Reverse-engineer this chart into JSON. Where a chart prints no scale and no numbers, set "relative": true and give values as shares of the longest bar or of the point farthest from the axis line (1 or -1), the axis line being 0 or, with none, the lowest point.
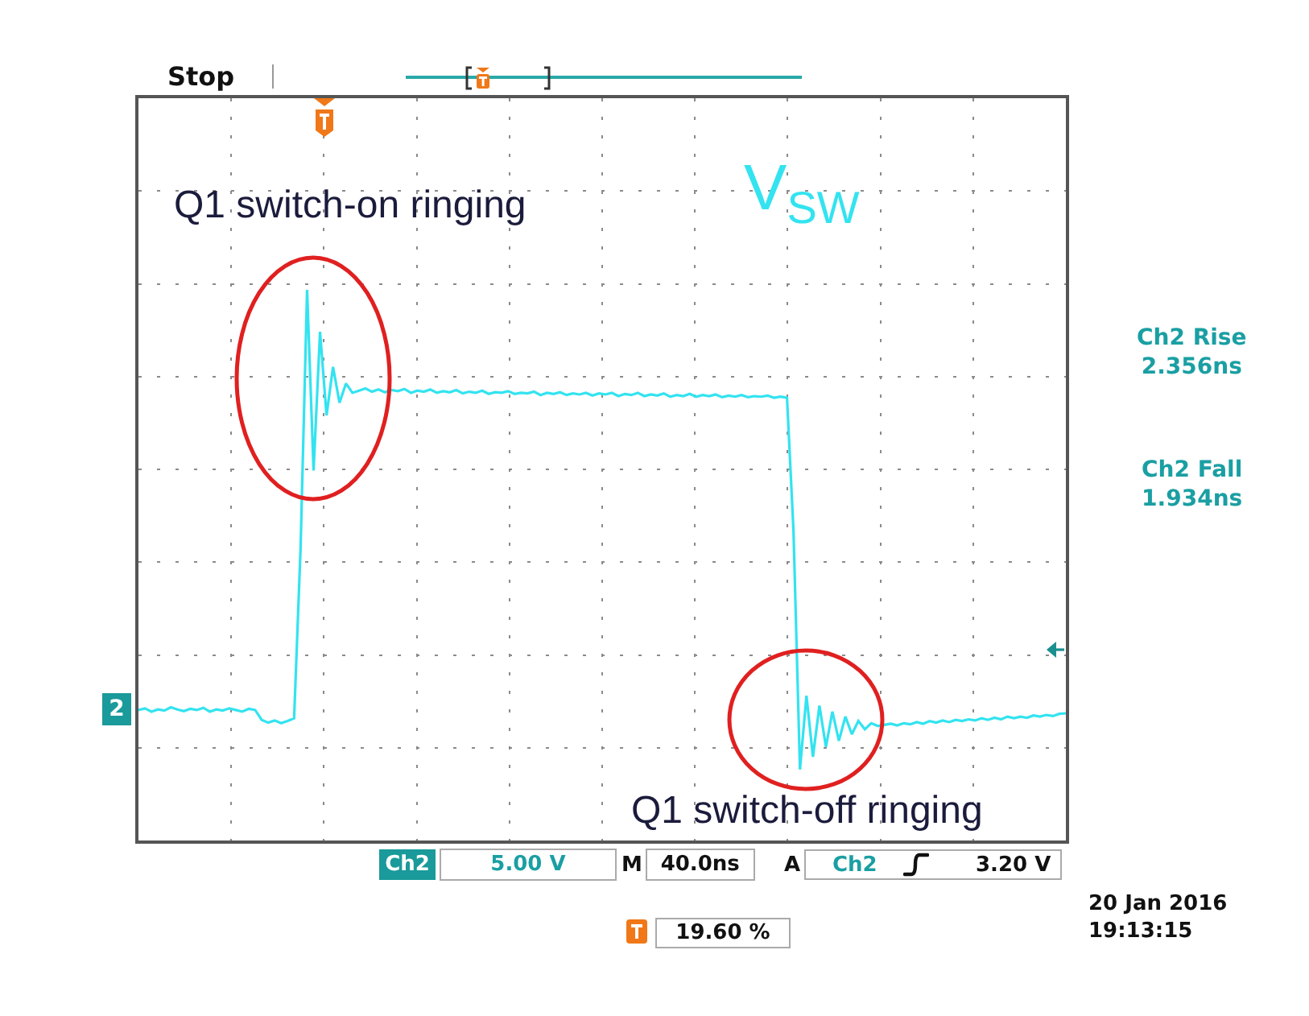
{
  "chart_data": {
    "type": "line",
    "relative": true,
    "grid": true,
    "color": "#33e3f0",
    "categories": [
      null,
      null,
      null,
      null,
      null,
      null,
      null,
      null,
      null,
      null,
      null,
      null,
      null,
      null,
      null,
      null,
      null,
      null,
      null,
      null,
      null,
      null,
      null,
      null,
      null,
      null,
      null,
      null,
      null,
      null,
      null,
      null,
      null,
      null,
      null,
      null,
      null,
      null,
      null,
      null,
      null,
      null,
      null,
      null,
      null,
      null,
      null,
      null,
      null,
      null,
      null,
      null,
      null,
      null,
      null,
      null,
      null,
      null,
      null,
      null,
      null,
      null,
      null,
      null,
      null,
      null,
      null,
      null,
      null,
      null,
      null,
      null,
      null,
      null,
      null,
      null,
      null,
      null,
      null,
      null,
      null,
      null,
      null,
      null,
      null,
      null,
      null,
      null,
      null,
      null,
      null,
      null,
      null,
      null,
      null,
      null,
      null,
      null,
      null,
      null,
      null,
      null,
      null,
      null,
      null,
      null,
      null,
      null,
      null,
      null,
      null,
      null,
      null,
      null,
      null,
      null,
      null,
      null,
      null,
      null,
      null,
      null,
      null,
      null,
      null,
      null,
      null,
      null,
      null,
      null,
      null,
      null,
      null,
      null,
      null,
      null,
      null,
      null,
      null,
      null,
      null,
      null,
      null,
      null
    ],
    "values": [
      0.237,
      0.24,
      0.234,
      0.238,
      0.236,
      0.242,
      0.238,
      0.235,
      0.239,
      0.237,
      0.241,
      0.234,
      0.238,
      0.236,
      0.24,
      0.237,
      0.234,
      0.239,
      0.237,
      0.219,
      0.214,
      0.218,
      0.213,
      0.217,
      0.222,
      0.532,
      1.0,
      0.672,
      0.924,
      0.772,
      0.86,
      0.795,
      0.83,
      0.813,
      0.817,
      0.821,
      0.815,
      0.819,
      0.814,
      0.818,
      0.816,
      0.82,
      0.813,
      0.817,
      0.815,
      0.819,
      0.813,
      0.816,
      0.814,
      0.818,
      0.812,
      0.815,
      0.813,
      0.817,
      0.811,
      0.814,
      0.813,
      0.816,
      0.811,
      0.813,
      0.812,
      0.815,
      0.809,
      0.813,
      0.811,
      0.814,
      0.809,
      0.812,
      0.81,
      0.813,
      0.808,
      0.812,
      0.81,
      0.813,
      0.807,
      0.811,
      0.809,
      0.813,
      0.807,
      0.81,
      0.808,
      0.812,
      0.806,
      0.809,
      0.807,
      0.811,
      0.806,
      0.809,
      0.807,
      0.81,
      0.805,
      0.808,
      0.806,
      0.809,
      0.805,
      0.807,
      0.806,
      0.808,
      0.804,
      0.806,
      0.804,
      0.562,
      0.129,
      0.263,
      0.152,
      0.245,
      0.17,
      0.234,
      0.181,
      0.225,
      0.193,
      0.217,
      0.202,
      0.213,
      0.208,
      0.21,
      0.212,
      0.209,
      0.213,
      0.211,
      0.215,
      0.212,
      0.217,
      0.214,
      0.218,
      0.215,
      0.219,
      0.217,
      0.22,
      0.218,
      0.222,
      0.219,
      0.223,
      0.22,
      0.225,
      0.222,
      0.225,
      0.223,
      0.227,
      0.225,
      0.228,
      0.226,
      0.23,
      0.231
    ],
    "annotations": [
      "Stop",
      "Q1 switch-on ringing",
      "V$_{SW}$",
      "Ch2 Rise\n2.356ns",
      "Ch2 Fall\n1.934ns",
      "Q1 switch-off ringing",
      "Ch2",
      "5.00 V",
      "M",
      "40.0ns",
      "A",
      "Ch2",
      "3.20 V",
      "20 Jan 2016\n19:13:15",
      "19.60 %",
      "2"
    ]
  }
}
